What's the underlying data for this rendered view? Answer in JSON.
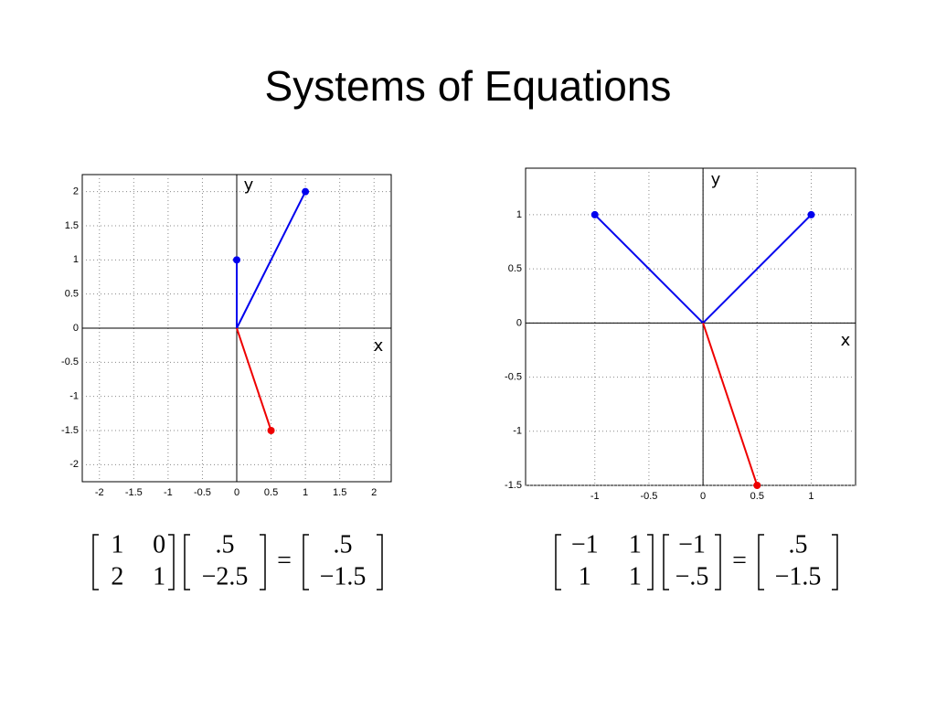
{
  "title": "Systems of Equations",
  "chart_data": [
    {
      "type": "vector",
      "x_label": "x",
      "y_label": "y",
      "grid": true,
      "xlim": [
        -2.25,
        2.25
      ],
      "ylim": [
        -2.25,
        2.25
      ],
      "xticks": [
        -2,
        -1.5,
        -1,
        -0.5,
        0,
        0.5,
        1,
        1.5,
        2
      ],
      "yticks": [
        -2,
        -1.5,
        -1,
        -0.5,
        0,
        0.5,
        1,
        1.5,
        2
      ],
      "series": [
        {
          "color": "#0000ee",
          "x": [
            0,
            0
          ],
          "y": [
            0,
            1
          ]
        },
        {
          "color": "#0000ee",
          "x": [
            0,
            1
          ],
          "y": [
            0,
            2
          ]
        },
        {
          "color": "#ee0000",
          "x": [
            0,
            0.5
          ],
          "y": [
            0,
            -1.5
          ]
        }
      ]
    },
    {
      "type": "vector",
      "x_label": "x",
      "y_label": "y",
      "grid": true,
      "xlim": [
        -1.64,
        1.41
      ],
      "ylim": [
        -1.5,
        1.43
      ],
      "xticks": [
        -1,
        -0.5,
        0,
        0.5,
        1
      ],
      "yticks": [
        -1.5,
        -1,
        -0.5,
        0,
        0.5,
        1
      ],
      "series": [
        {
          "color": "#0000ee",
          "x": [
            0,
            -1
          ],
          "y": [
            0,
            1
          ]
        },
        {
          "color": "#0000ee",
          "x": [
            0,
            1
          ],
          "y": [
            0,
            1
          ]
        },
        {
          "color": "#ee0000",
          "x": [
            0,
            0.5
          ],
          "y": [
            0,
            -1.5
          ]
        }
      ]
    }
  ],
  "equations": [
    {
      "matrix": [
        [
          "1",
          "0"
        ],
        [
          "2",
          "1"
        ]
      ],
      "vector": [
        ".5",
        "−2.5"
      ],
      "equals": "=",
      "result": [
        ".5",
        "−1.5"
      ]
    },
    {
      "matrix": [
        [
          "−1",
          "1"
        ],
        [
          "1",
          "1"
        ]
      ],
      "vector": [
        "−1",
        "−.5"
      ],
      "equals": "=",
      "result": [
        ".5",
        "−1.5"
      ]
    }
  ]
}
